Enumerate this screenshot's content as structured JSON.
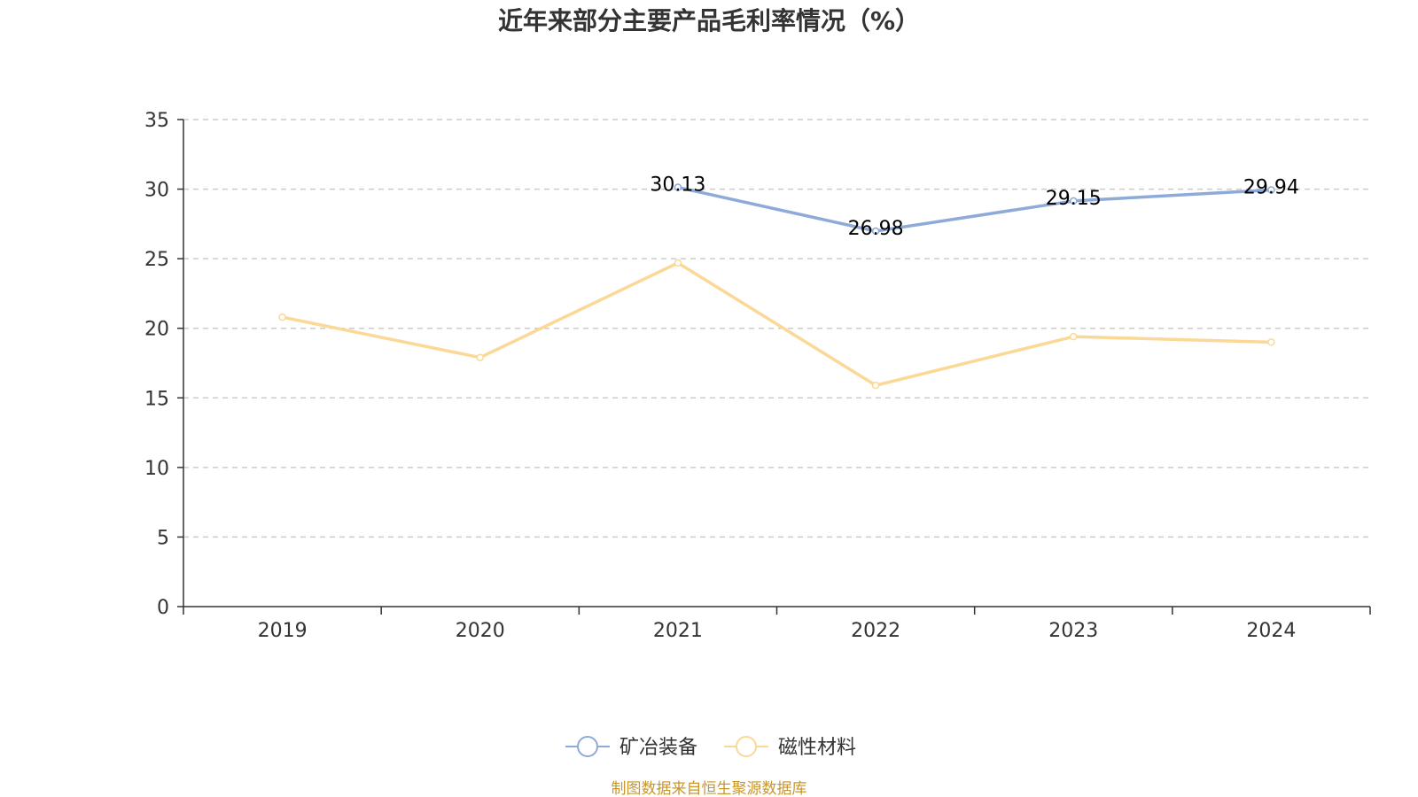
{
  "chart_data": {
    "type": "line",
    "title": "近年来部分主要产品毛利率情况（%）",
    "categories": [
      "2019",
      "2020",
      "2021",
      "2022",
      "2023",
      "2024"
    ],
    "ylim": [
      0,
      35
    ],
    "yticks": [
      0,
      5,
      10,
      15,
      20,
      25,
      30,
      35
    ],
    "grid": true,
    "legend_position": "bottom-center",
    "series": [
      {
        "name": "矿冶装备",
        "color": "#8eaad9",
        "values": [
          null,
          null,
          30.13,
          26.98,
          29.15,
          29.94
        ],
        "labels": [
          "",
          "",
          "30.13",
          "26.98",
          "29.15",
          "29.94"
        ]
      },
      {
        "name": "磁性材料",
        "color": "#fbd896",
        "values": [
          20.8,
          17.9,
          24.7,
          15.9,
          19.4,
          19.0
        ],
        "labels": [
          "",
          "",
          "",
          "",
          "",
          ""
        ]
      }
    ],
    "source": "制图数据来自恒生聚源数据库"
  }
}
